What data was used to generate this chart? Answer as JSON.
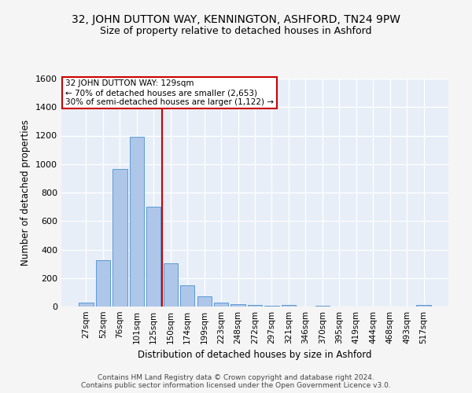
{
  "title": "32, JOHN DUTTON WAY, KENNINGTON, ASHFORD, TN24 9PW",
  "subtitle": "Size of property relative to detached houses in Ashford",
  "xlabel": "Distribution of detached houses by size in Ashford",
  "ylabel": "Number of detached properties",
  "bar_labels": [
    "27sqm",
    "52sqm",
    "76sqm",
    "101sqm",
    "125sqm",
    "150sqm",
    "174sqm",
    "199sqm",
    "223sqm",
    "248sqm",
    "272sqm",
    "297sqm",
    "321sqm",
    "346sqm",
    "370sqm",
    "395sqm",
    "419sqm",
    "444sqm",
    "468sqm",
    "493sqm",
    "517sqm"
  ],
  "bar_values": [
    30,
    325,
    965,
    1190,
    700,
    305,
    150,
    70,
    25,
    15,
    12,
    8,
    10,
    0,
    8,
    0,
    0,
    0,
    0,
    0,
    10
  ],
  "bar_color": "#aec6e8",
  "bar_edgecolor": "#5b9bd5",
  "vline_color": "#cc0000",
  "annotation_box_color": "#cc0000",
  "property_label": "32 JOHN DUTTON WAY: 129sqm",
  "annotation_line1": "← 70% of detached houses are smaller (2,653)",
  "annotation_line2": "30% of semi-detached houses are larger (1,122) →",
  "ylim": [
    0,
    1600
  ],
  "yticks": [
    0,
    200,
    400,
    600,
    800,
    1000,
    1200,
    1400,
    1600
  ],
  "background_color": "#e8eef8",
  "fig_background": "#f5f5f5",
  "grid_color": "#ffffff",
  "footer_line1": "Contains HM Land Registry data © Crown copyright and database right 2024.",
  "footer_line2": "Contains public sector information licensed under the Open Government Licence v3.0."
}
